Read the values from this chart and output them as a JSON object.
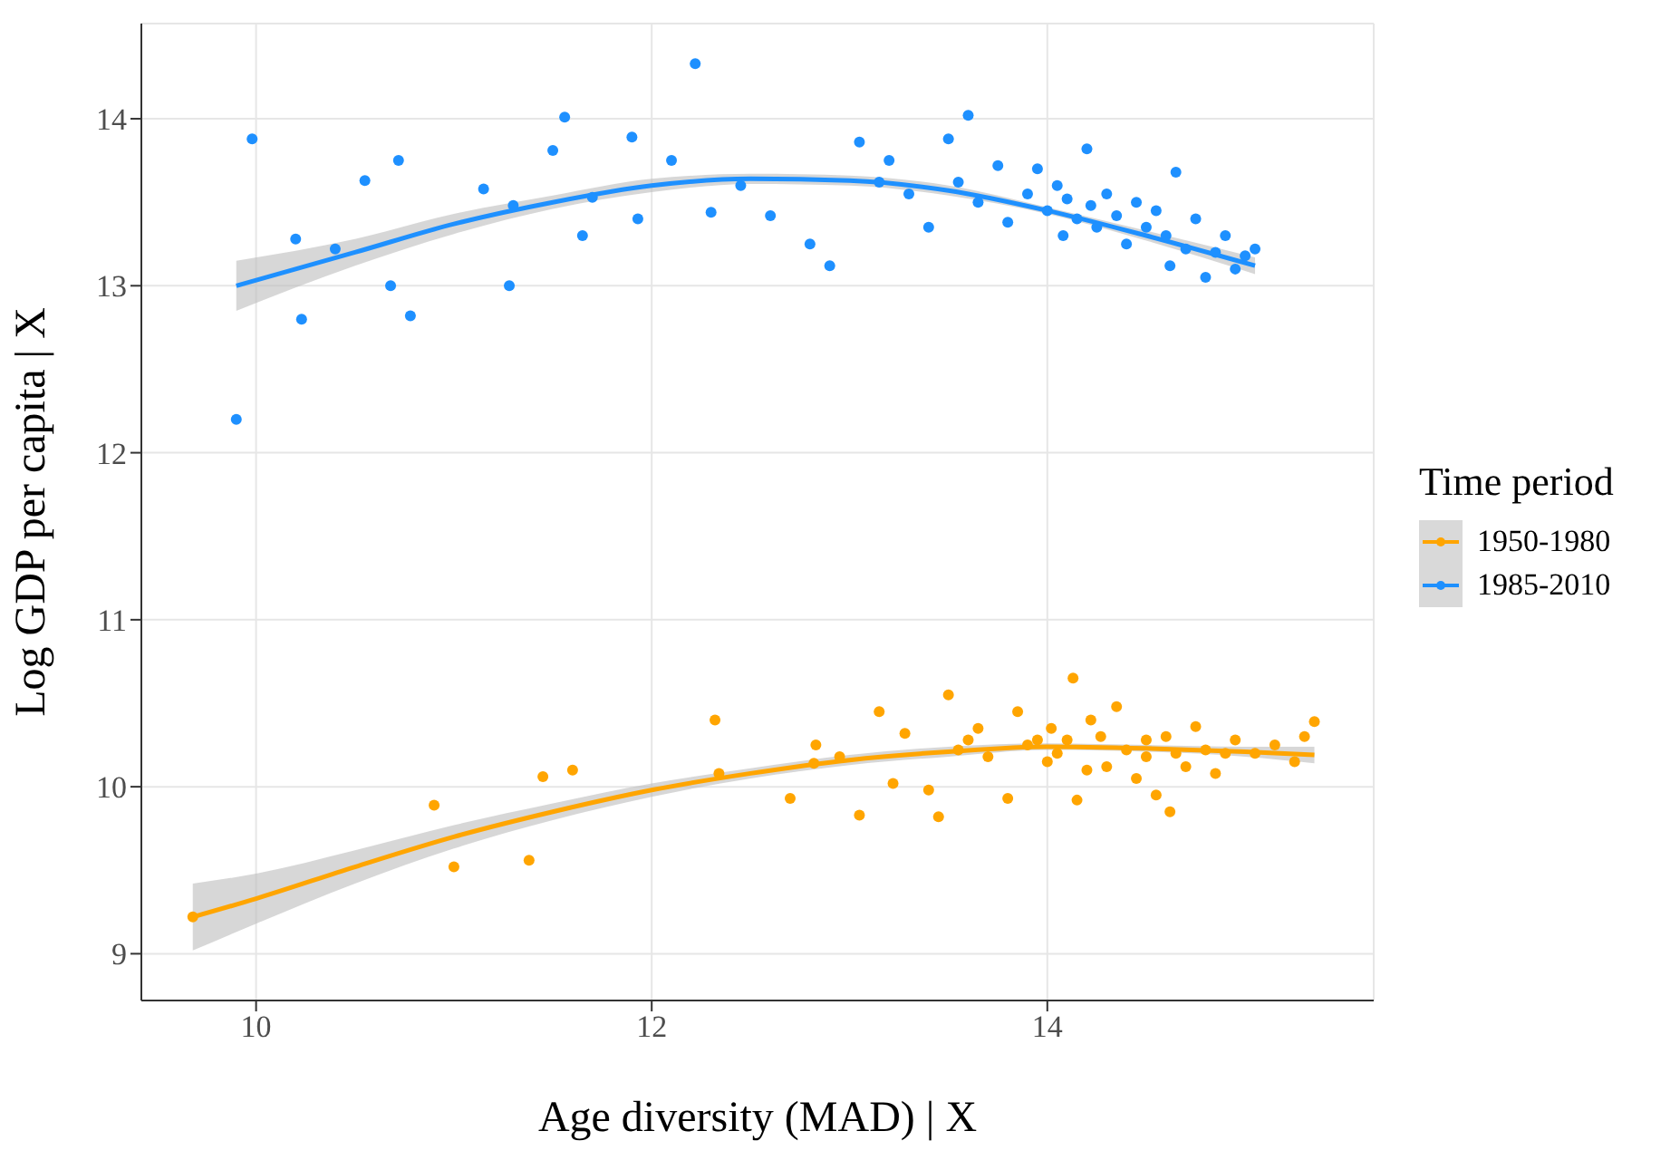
{
  "chart_data": {
    "type": "scatter",
    "xlabel": "Age diversity (MAD) | X",
    "ylabel": "Log GDP per capita | X",
    "legend_title": "Time period",
    "legend": "right",
    "grid": true,
    "xlim": [
      9.42,
      15.65
    ],
    "xticks": [
      10,
      12,
      14
    ],
    "ylim": [
      8.72,
      14.57
    ],
    "yticks": [
      9,
      10,
      11,
      12,
      13,
      14
    ],
    "series": [
      {
        "marker": "circle",
        "name": "1950-1980",
        "color": "#ffa500",
        "x": [
          9.68,
          10.9,
          11.0,
          11.38,
          11.45,
          11.6,
          12.32,
          12.34,
          12.7,
          12.82,
          12.83,
          12.95,
          13.05,
          13.15,
          13.22,
          13.28,
          13.4,
          13.45,
          13.5,
          13.55,
          13.6,
          13.65,
          13.7,
          13.8,
          13.85,
          13.9,
          13.95,
          14.0,
          14.02,
          14.05,
          14.1,
          14.13,
          14.15,
          14.2,
          14.22,
          14.27,
          14.3,
          14.35,
          14.4,
          14.45,
          14.5,
          14.5,
          14.55,
          14.6,
          14.62,
          14.65,
          14.7,
          14.75,
          14.8,
          14.85,
          14.9,
          14.95,
          15.05,
          15.15,
          15.25,
          15.3,
          15.35
        ],
        "values": [
          9.22,
          9.89,
          9.52,
          9.56,
          10.06,
          10.1,
          10.4,
          10.08,
          9.93,
          10.14,
          10.25,
          10.18,
          9.83,
          10.45,
          10.02,
          10.32,
          9.98,
          9.82,
          10.55,
          10.22,
          10.28,
          10.35,
          10.18,
          9.93,
          10.45,
          10.25,
          10.28,
          10.15,
          10.35,
          10.2,
          10.28,
          10.65,
          9.92,
          10.1,
          10.4,
          10.3,
          10.12,
          10.48,
          10.22,
          10.05,
          10.28,
          10.18,
          9.95,
          10.3,
          9.85,
          10.2,
          10.12,
          10.36,
          10.22,
          10.08,
          10.2,
          10.28,
          10.2,
          10.25,
          10.15,
          10.3,
          10.39
        ]
      },
      {
        "marker": "circle",
        "name": "1985-2010",
        "color": "#1e90ff",
        "x": [
          9.9,
          9.98,
          10.2,
          10.23,
          10.4,
          10.55,
          10.68,
          10.72,
          10.78,
          11.15,
          11.28,
          11.3,
          11.5,
          11.56,
          11.65,
          11.7,
          11.9,
          11.93,
          12.1,
          12.22,
          12.3,
          12.45,
          12.6,
          12.8,
          12.9,
          13.05,
          13.15,
          13.2,
          13.3,
          13.4,
          13.5,
          13.55,
          13.6,
          13.65,
          13.75,
          13.8,
          13.9,
          13.95,
          14.0,
          14.05,
          14.08,
          14.1,
          14.15,
          14.2,
          14.22,
          14.25,
          14.3,
          14.35,
          14.4,
          14.45,
          14.5,
          14.55,
          14.6,
          14.62,
          14.65,
          14.7,
          14.75,
          14.8,
          14.85,
          14.9,
          14.95,
          15.0,
          15.05
        ],
        "values": [
          12.2,
          13.88,
          13.28,
          12.8,
          13.22,
          13.63,
          13.0,
          13.75,
          12.82,
          13.58,
          13.0,
          13.48,
          13.81,
          14.01,
          13.3,
          13.53,
          13.89,
          13.4,
          13.75,
          14.33,
          13.44,
          13.6,
          13.42,
          13.25,
          13.12,
          13.86,
          13.62,
          13.75,
          13.55,
          13.35,
          13.88,
          13.62,
          14.02,
          13.5,
          13.72,
          13.38,
          13.55,
          13.7,
          13.45,
          13.6,
          13.3,
          13.52,
          13.4,
          13.82,
          13.48,
          13.35,
          13.55,
          13.42,
          13.25,
          13.5,
          13.35,
          13.45,
          13.3,
          13.12,
          13.68,
          13.22,
          13.4,
          13.05,
          13.2,
          13.3,
          13.1,
          13.18,
          13.22
        ]
      },
      {
        "type": "line",
        "color": "#ffa500",
        "x": [
          9.68,
          10.0,
          10.5,
          11.0,
          11.5,
          12.0,
          12.5,
          13.0,
          13.5,
          14.0,
          14.5,
          15.0,
          15.35
        ],
        "values": [
          9.22,
          9.33,
          9.52,
          9.7,
          9.85,
          9.98,
          10.08,
          10.16,
          10.21,
          10.24,
          10.23,
          10.21,
          10.19
        ],
        "lower": [
          9.02,
          9.18,
          9.42,
          9.63,
          9.8,
          9.94,
          10.05,
          10.13,
          10.18,
          10.22,
          10.21,
          10.18,
          10.14
        ],
        "upper": [
          9.42,
          9.48,
          9.62,
          9.77,
          9.9,
          10.02,
          10.11,
          10.19,
          10.24,
          10.26,
          10.25,
          10.24,
          10.24
        ]
      },
      {
        "type": "line",
        "color": "#1e90ff",
        "x": [
          9.9,
          10.5,
          11.0,
          11.5,
          12.0,
          12.5,
          13.0,
          13.5,
          14.0,
          14.5,
          15.05
        ],
        "values": [
          13.0,
          13.2,
          13.37,
          13.5,
          13.6,
          13.64,
          13.63,
          13.57,
          13.45,
          13.3,
          13.12
        ],
        "lower": [
          12.85,
          13.12,
          13.31,
          13.46,
          13.56,
          13.61,
          13.6,
          13.54,
          13.43,
          13.27,
          13.07
        ],
        "upper": [
          13.15,
          13.28,
          13.43,
          13.54,
          13.64,
          13.67,
          13.66,
          13.6,
          13.47,
          13.33,
          13.17
        ]
      }
    ]
  }
}
